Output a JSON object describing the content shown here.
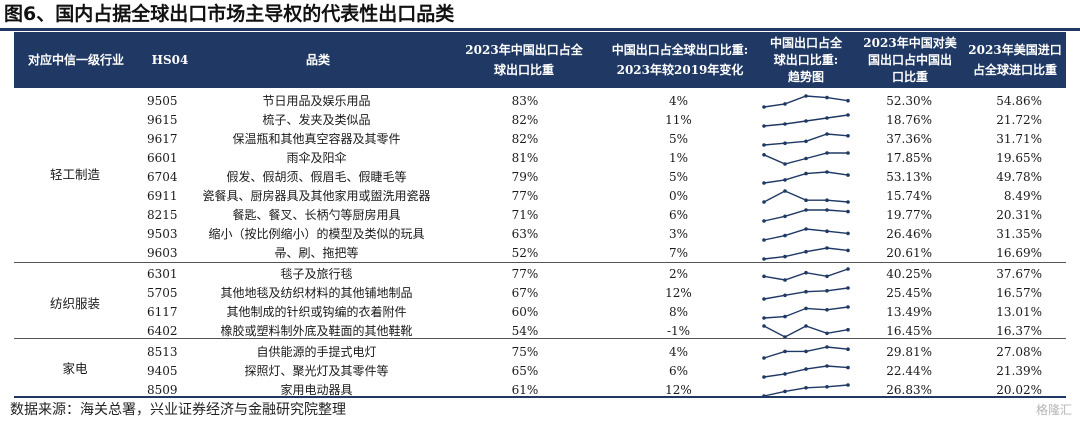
{
  "title": "图6、国内占据全球出口市场主导权的代表性出口品类",
  "header": {
    "industry": "对应中信一级行业",
    "hs": "HS04",
    "category": "品类",
    "share_2023_l1": "2023年中国出口占全",
    "share_2023_l2": "球出口比重",
    "change_l1": "中国出口占全球出口比重:",
    "change_l2": "2023年较2019年变化",
    "trend_l1": "中国出口占全",
    "trend_l2": "球出口比重:",
    "trend_l3": "趋势图",
    "us_share_l1": "2023年中国对美",
    "us_share_l2": "国出口占中国出",
    "us_share_l3": "口比重",
    "us_import_l1": "2023年美国进口",
    "us_import_l2": "占全球进口比重"
  },
  "groups": [
    {
      "label": "轻工制造"
    },
    {
      "label": "纺织服装"
    },
    {
      "label": "家电"
    }
  ],
  "rows": [
    {
      "code": "9505",
      "name": "节日用品及娱乐用品",
      "share": "83%",
      "change": "4%",
      "us_share": "52.30%",
      "us_import": "54.86%",
      "trend": [
        0.79,
        0.81,
        0.86,
        0.85,
        0.83
      ]
    },
    {
      "code": "9615",
      "name": "梳子、发夹及类似品",
      "share": "82%",
      "change": "11%",
      "us_share": "18.76%",
      "us_import": "21.72%",
      "trend": [
        0.71,
        0.73,
        0.76,
        0.79,
        0.82
      ]
    },
    {
      "code": "9617",
      "name": "保温瓶和其他真空容器及其零件",
      "share": "82%",
      "change": "5%",
      "us_share": "37.36%",
      "us_import": "31.71%",
      "trend": [
        0.77,
        0.78,
        0.79,
        0.83,
        0.82
      ]
    },
    {
      "code": "6601",
      "name": "雨伞及阳伞",
      "share": "81%",
      "change": "1%",
      "us_share": "17.85%",
      "us_import": "19.65%",
      "trend": [
        0.8,
        0.75,
        0.78,
        0.81,
        0.81
      ]
    },
    {
      "code": "6704",
      "name": "假发、假胡须、假眉毛、假睫毛等",
      "share": "79%",
      "change": "5%",
      "us_share": "53.13%",
      "us_import": "49.78%",
      "trend": [
        0.74,
        0.76,
        0.8,
        0.81,
        0.79
      ]
    },
    {
      "code": "6911",
      "name": "瓷餐具、厨房器具及其他家用或盥洗用瓷器",
      "share": "77%",
      "change": "0%",
      "us_share": "15.74%",
      "us_import": "8.49%",
      "trend": [
        0.77,
        0.83,
        0.78,
        0.78,
        0.77
      ]
    },
    {
      "code": "8215",
      "name": "餐匙、餐叉、长柄勺等厨房用具",
      "share": "71%",
      "change": "6%",
      "us_share": "19.77%",
      "us_import": "20.31%",
      "trend": [
        0.65,
        0.68,
        0.72,
        0.72,
        0.71
      ]
    },
    {
      "code": "9503",
      "name": "缩小（按比例缩小）的模型及类似的玩具",
      "share": "63%",
      "change": "3%",
      "us_share": "26.46%",
      "us_import": "31.35%",
      "trend": [
        0.6,
        0.62,
        0.65,
        0.64,
        0.63
      ]
    },
    {
      "code": "9603",
      "name": "帚、刷、拖把等",
      "share": "52%",
      "change": "7%",
      "us_share": "20.61%",
      "us_import": "16.69%",
      "trend": [
        0.45,
        0.47,
        0.51,
        0.54,
        0.52
      ]
    },
    {
      "code": "6301",
      "name": "毯子及旅行毯",
      "share": "77%",
      "change": "2%",
      "us_share": "40.25%",
      "us_import": "37.67%",
      "trend": [
        0.75,
        0.74,
        0.76,
        0.75,
        0.77
      ]
    },
    {
      "code": "5705",
      "name": "其他地毯及纺织材料的其他铺地制品",
      "share": "67%",
      "change": "12%",
      "us_share": "25.45%",
      "us_import": "16.57%",
      "trend": [
        0.55,
        0.59,
        0.63,
        0.64,
        0.67
      ]
    },
    {
      "code": "6117",
      "name": "其他制成的针织或钩编的衣着附件",
      "share": "60%",
      "change": "8%",
      "us_share": "13.49%",
      "us_import": "13.01%",
      "trend": [
        0.52,
        0.53,
        0.59,
        0.58,
        0.6
      ]
    },
    {
      "code": "6402",
      "name": "橡胶或塑料制外底及鞋面的其他鞋靴",
      "share": "54%",
      "change": "-1%",
      "us_share": "16.45%",
      "us_import": "16.37%",
      "trend": [
        0.55,
        0.52,
        0.55,
        0.53,
        0.54
      ]
    },
    {
      "code": "8513",
      "name": "自供能源的手提式电灯",
      "share": "75%",
      "change": "4%",
      "us_share": "29.81%",
      "us_import": "27.08%",
      "trend": [
        0.71,
        0.74,
        0.74,
        0.76,
        0.75
      ]
    },
    {
      "code": "9405",
      "name": "探照灯、聚光灯及其零件等",
      "share": "65%",
      "change": "6%",
      "us_share": "22.44%",
      "us_import": "21.39%",
      "trend": [
        0.59,
        0.61,
        0.64,
        0.66,
        0.65
      ]
    },
    {
      "code": "8509",
      "name": "家用电动器具",
      "share": "61%",
      "change": "12%",
      "us_share": "26.83%",
      "us_import": "20.02%",
      "trend": [
        0.49,
        0.54,
        0.58,
        0.59,
        0.61
      ]
    }
  ],
  "source": "数据来源：海关总署，兴业证券经济与金融研究院整理",
  "watermark": "格隆汇",
  "colors": {
    "header_bg": "#1f3864",
    "spark": "#1f3864"
  }
}
